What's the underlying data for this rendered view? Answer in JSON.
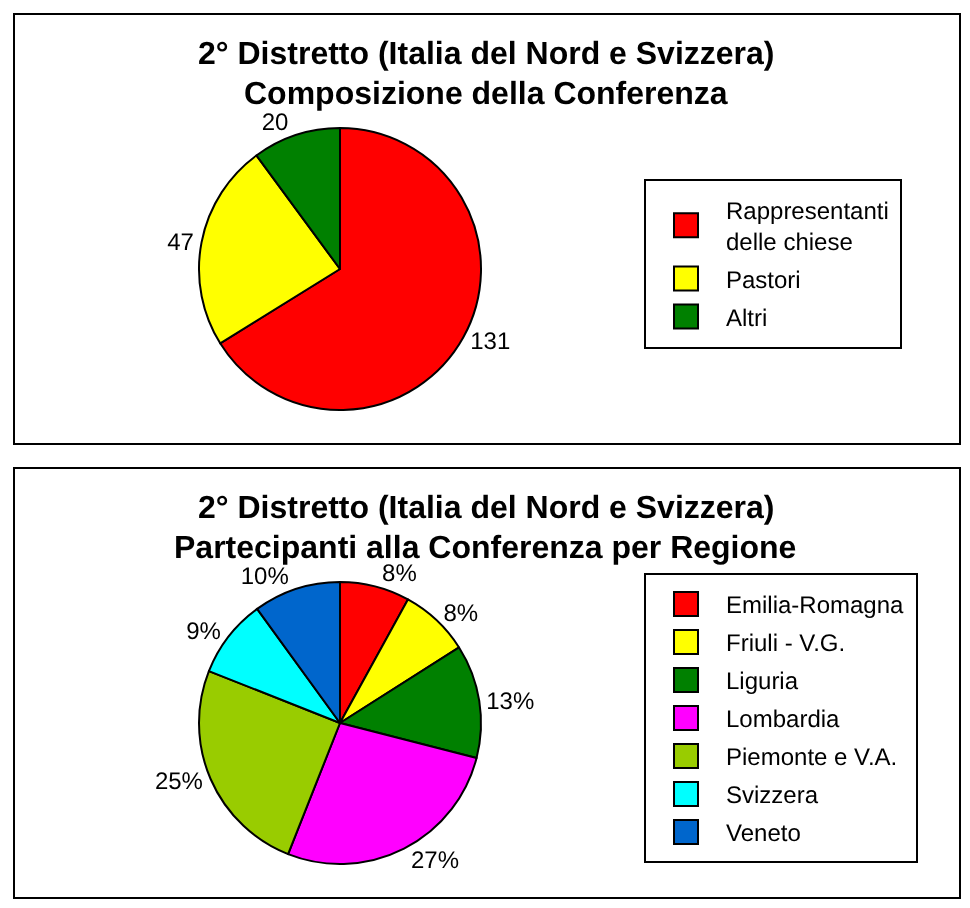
{
  "chart_data": [
    {
      "type": "pie",
      "title": "2° Distretto (Italia del Nord e Svizzera)",
      "subtitle": "Composizione della Conferenza",
      "categories": [
        "Rappresentanti delle chiese",
        "Pastori",
        "Altri"
      ],
      "values": [
        131,
        47,
        20
      ],
      "colors": [
        "#ff0000",
        "#ffff00",
        "#008000"
      ],
      "data_labels": true,
      "legend": "right"
    },
    {
      "type": "pie",
      "title": "2° Distretto (Italia del Nord e Svizzera)",
      "subtitle": "Partecipanti alla Conferenza per Regione",
      "categories": [
        "Emilia-Romagna",
        "Friuli - V.G.",
        "Liguria",
        "Lombardia",
        "Piemonte e V.A.",
        "Svizzera",
        "Veneto"
      ],
      "values": [
        8,
        8,
        13,
        27,
        25,
        9,
        10
      ],
      "colors": [
        "#ff0000",
        "#ffff00",
        "#008000",
        "#ff00ff",
        "#99cc00",
        "#00ffff",
        "#0066cc"
      ],
      "value_labels": [
        "8%",
        "8%",
        "13%",
        "27%",
        "25%",
        "9%",
        "10%"
      ],
      "legend": "right"
    }
  ]
}
